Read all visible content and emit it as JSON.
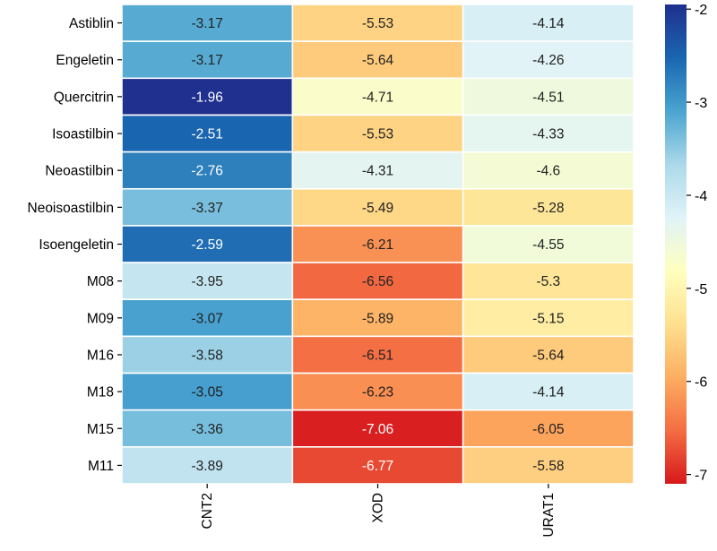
{
  "chart_data": {
    "type": "heatmap",
    "title": "",
    "rows": [
      "Astiblin",
      "Engeletin",
      "Quercitrin",
      "Isoastilbin",
      "Neoastilbin",
      "Neoisoastilbin",
      "Isoengeletin",
      "M08",
      "M09",
      "M16",
      "M18",
      "M15",
      "M11"
    ],
    "columns": [
      "CNT2",
      "XOD",
      "URAT1"
    ],
    "values": [
      [
        -3.17,
        -5.53,
        -4.14
      ],
      [
        -3.17,
        -5.64,
        -4.26
      ],
      [
        -1.96,
        -4.71,
        -4.51
      ],
      [
        -2.51,
        -5.53,
        -4.33
      ],
      [
        -2.76,
        -4.31,
        -4.6
      ],
      [
        -3.37,
        -5.49,
        -5.28
      ],
      [
        -2.59,
        -6.21,
        -4.55
      ],
      [
        -3.95,
        -6.56,
        -5.3
      ],
      [
        -3.07,
        -5.89,
        -5.15
      ],
      [
        -3.58,
        -6.51,
        -5.64
      ],
      [
        -3.05,
        -6.23,
        -4.14
      ],
      [
        -3.36,
        -7.06,
        -6.05
      ],
      [
        -3.89,
        -6.77,
        -5.58
      ]
    ],
    "colorbar": {
      "min": -7.1,
      "max": -1.95,
      "ticks": [
        -2,
        -3,
        -4,
        -5,
        -6,
        -7
      ],
      "tick_labels": [
        "-2",
        "-3",
        "-4",
        "-5",
        "-6",
        "-7"
      ],
      "colormap": "RdYlBu",
      "colors": [
        "#d7191c",
        "#f46d43",
        "#fdae61",
        "#fee090",
        "#ffffbf",
        "#e0f3f8",
        "#abd9e9",
        "#4aa4d0",
        "#1a66b0",
        "#1f2f8e"
      ]
    }
  }
}
